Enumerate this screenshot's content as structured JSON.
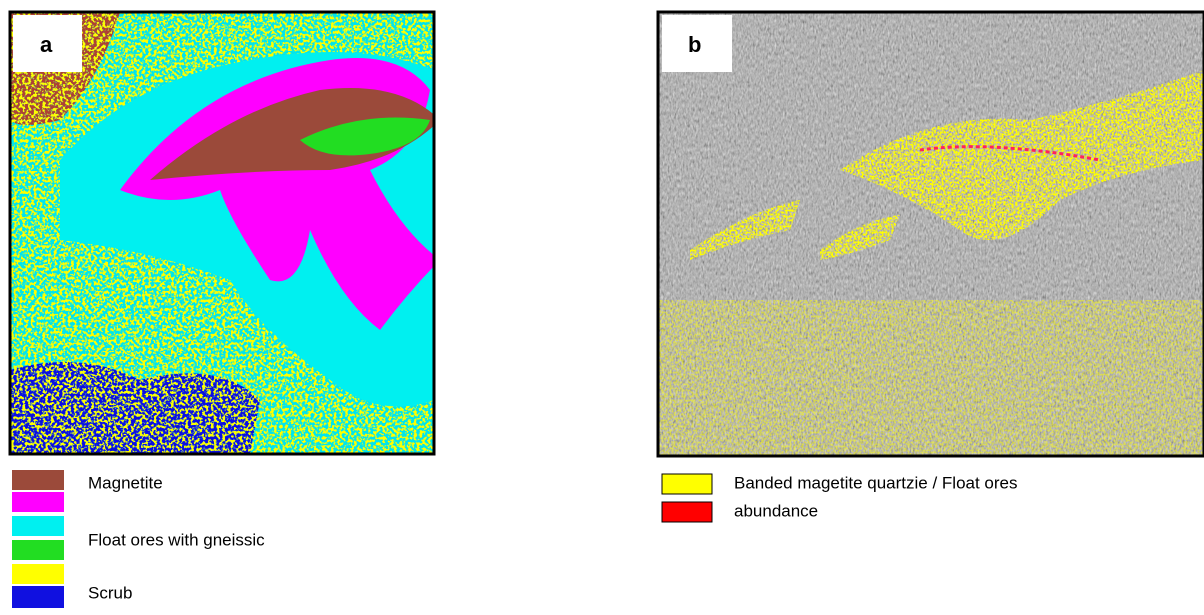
{
  "panels": [
    {
      "label": "a",
      "legend": [
        "Magnetite",
        "Float ores with gneissic",
        "Scrub"
      ]
    },
    {
      "label": "b",
      "legend": [
        "Banded magetite quartzie / Float ores",
        "abundance"
      ]
    }
  ]
}
